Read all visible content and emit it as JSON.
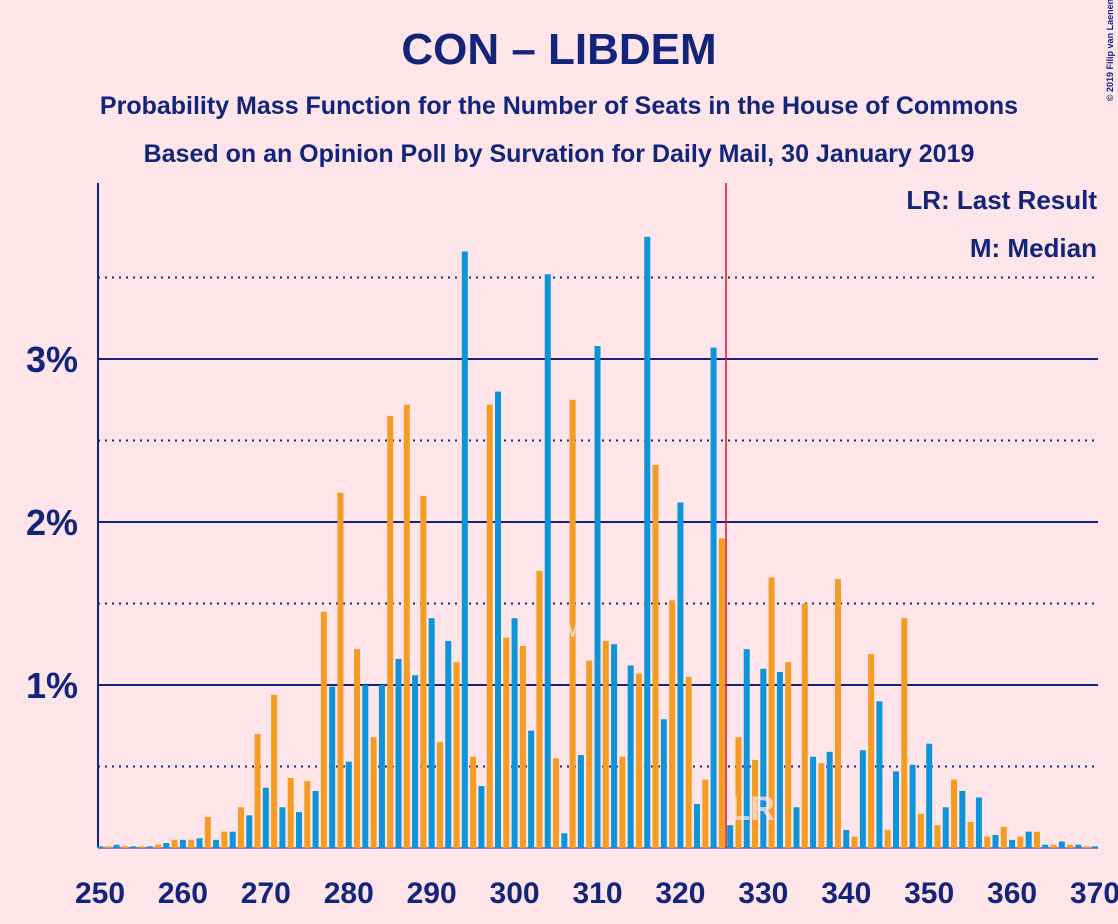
{
  "chart_data": {
    "type": "bar",
    "title": "CON – LIBDEM",
    "subtitle": "Probability Mass Function for the Number of Seats in the House of Commons",
    "subtitle2": "Based on an Opinion Poll by Survation for Daily Mail, 30 January 2019",
    "credit": "© 2019 Filip van Laenen",
    "legend": [
      "LR: Last Result",
      "M: Median"
    ],
    "median": 307,
    "median_label": "M",
    "last_result": 326,
    "last_result_label": "LR",
    "bar_colors": [
      "#0e94d8",
      "#f59c24"
    ],
    "x": [
      250,
      251,
      252,
      253,
      254,
      255,
      256,
      257,
      258,
      259,
      260,
      261,
      262,
      263,
      264,
      265,
      266,
      267,
      268,
      269,
      270,
      271,
      272,
      273,
      274,
      275,
      276,
      277,
      278,
      279,
      280,
      281,
      282,
      283,
      284,
      285,
      286,
      287,
      288,
      289,
      290,
      291,
      292,
      293,
      294,
      295,
      296,
      297,
      298,
      299,
      300,
      301,
      302,
      303,
      304,
      305,
      306,
      307,
      308,
      309,
      310,
      311,
      312,
      313,
      314,
      315,
      316,
      317,
      318,
      319,
      320,
      321,
      322,
      323,
      324,
      325,
      326,
      327,
      328,
      329,
      330,
      331,
      332,
      333,
      334,
      335,
      336,
      337,
      338,
      339,
      340,
      341,
      342,
      343,
      344,
      345,
      346,
      347,
      348,
      349,
      350,
      351,
      352,
      353,
      354,
      355,
      356,
      357,
      358,
      359,
      360,
      361,
      362,
      363,
      364,
      365,
      366,
      367,
      368,
      369,
      370
    ],
    "values": [
      0.01,
      0.01,
      0.02,
      0.01,
      0.01,
      0.01,
      0.01,
      0.02,
      0.03,
      0.05,
      0.05,
      0.05,
      0.06,
      0.19,
      0.05,
      0.1,
      0.1,
      0.25,
      0.2,
      0.7,
      0.37,
      0.94,
      0.25,
      0.43,
      0.22,
      0.41,
      0.35,
      1.45,
      0.99,
      2.18,
      0.53,
      1.22,
      1.0,
      0.68,
      1.0,
      2.65,
      1.16,
      2.72,
      1.06,
      2.16,
      1.41,
      0.65,
      1.27,
      1.14,
      3.66,
      0.56,
      0.38,
      2.72,
      2.8,
      1.29,
      1.41,
      1.24,
      0.72,
      1.7,
      3.52,
      0.55,
      0.09,
      2.75,
      0.57,
      1.15,
      3.08,
      1.27,
      1.25,
      0.56,
      1.12,
      1.07,
      3.75,
      2.35,
      0.79,
      1.52,
      2.12,
      1.05,
      0.27,
      0.42,
      3.07,
      1.9,
      0.14,
      0.68,
      1.22,
      0.54,
      1.1,
      1.66,
      1.08,
      1.14,
      0.25,
      1.5,
      0.56,
      0.52,
      0.59,
      1.65,
      0.11,
      0.07,
      0.6,
      1.19,
      0.9,
      0.11,
      0.47,
      1.41,
      0.51,
      0.21,
      0.64,
      0.14,
      0.25,
      0.42,
      0.35,
      0.16,
      0.31,
      0.07,
      0.08,
      0.13,
      0.05,
      0.07,
      0.1,
      0.1,
      0.02,
      0.02,
      0.04,
      0.02,
      0.02,
      0.01,
      0.01
    ],
    "xlim": [
      250,
      370
    ],
    "xticks": [
      250,
      260,
      270,
      280,
      290,
      300,
      310,
      320,
      330,
      340,
      350,
      360,
      370
    ],
    "ylim": [
      0,
      4.08
    ],
    "yticks": [
      {
        "value": 1,
        "label": "1%"
      },
      {
        "value": 2,
        "label": "2%"
      },
      {
        "value": 3,
        "label": "3%"
      }
    ],
    "minor_yticks": [
      0.5,
      1.5,
      2.5,
      3.5
    ],
    "grid": true
  }
}
